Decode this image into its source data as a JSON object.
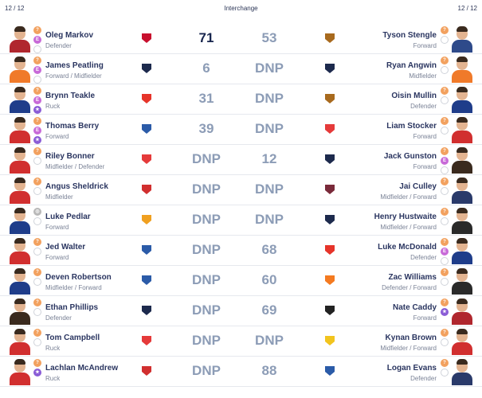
{
  "header": {
    "left_count": "12 / 12",
    "title": "Interchange",
    "right_count": "12 / 12"
  },
  "rows": [
    {
      "left": {
        "name": "Oleg Markov",
        "pos": "Defender",
        "score": "71",
        "logo": "essendon",
        "badges": [
          "q",
          "e",
          "o"
        ],
        "jersey": "#b0272e"
      },
      "right": {
        "name": "Tyson Stengle",
        "pos": "Forward",
        "score": "53",
        "logo": "hawthorn",
        "badges": [
          "q",
          "o"
        ],
        "jersey": "#2e4a8a"
      }
    },
    {
      "left": {
        "name": "James Peatling",
        "pos": "Forward / Midfielder",
        "score": "6",
        "logo": "carlton",
        "badges": [
          "q",
          "e",
          "o"
        ],
        "jersey": "#f07a2a"
      },
      "right": {
        "name": "Ryan Angwin",
        "pos": "Midfielder",
        "score": "DNP",
        "logo": "carlton",
        "badges": [
          "q",
          "o"
        ],
        "jersey": "#f07a2a"
      }
    },
    {
      "left": {
        "name": "Brynn Teakle",
        "pos": "Ruck",
        "score": "31",
        "logo": "suns",
        "badges": [
          "q",
          "e",
          "s"
        ],
        "jersey": "#1f3d8a"
      },
      "right": {
        "name": "Oisin Mullin",
        "pos": "Defender",
        "score": "DNP",
        "logo": "hawthorn",
        "badges": [
          "q",
          "o"
        ],
        "jersey": "#1f3d8a"
      }
    },
    {
      "left": {
        "name": "Thomas Berry",
        "pos": "Forward",
        "score": "39",
        "logo": "north",
        "badges": [
          "q",
          "e",
          "s"
        ],
        "jersey": "#d12f2f"
      },
      "right": {
        "name": "Liam Stocker",
        "pos": "Forward",
        "score": "DNP",
        "logo": "swans",
        "badges": [
          "q",
          "o"
        ],
        "jersey": "#d12f2f"
      }
    },
    {
      "left": {
        "name": "Riley Bonner",
        "pos": "Midfielder / Defender",
        "score": "DNP",
        "logo": "swans",
        "badges": [
          "q",
          "o"
        ],
        "jersey": "#d12f2f"
      },
      "right": {
        "name": "Jack Gunston",
        "pos": "Forward",
        "score": "12",
        "logo": "geelong",
        "badges": [
          "q",
          "e",
          "o"
        ],
        "jersey": "#3a2a1e"
      }
    },
    {
      "left": {
        "name": "Angus Sheldrick",
        "pos": "Midfielder",
        "score": "DNP",
        "logo": "stkilda",
        "badges": [
          "q",
          "o"
        ],
        "jersey": "#d12f2f"
      },
      "right": {
        "name": "Jai Culley",
        "pos": "Midfielder / Forward",
        "score": "DNP",
        "logo": "brisbane",
        "badges": [
          "q",
          "o"
        ],
        "jersey": "#2a3a6a"
      }
    },
    {
      "left": {
        "name": "Luke Pedlar",
        "pos": "Forward",
        "score": "DNP",
        "logo": "adelaide",
        "badges": [
          "g",
          "o"
        ],
        "jersey": "#1f3d8a"
      },
      "right": {
        "name": "Henry Hustwaite",
        "pos": "Midfielder / Forward",
        "score": "DNP",
        "logo": "geelong",
        "badges": [
          "q",
          "o"
        ],
        "jersey": "#2a2a2a"
      }
    },
    {
      "left": {
        "name": "Jed Walter",
        "pos": "Forward",
        "score": "DNP",
        "logo": "north",
        "badges": [
          "q",
          "o"
        ],
        "jersey": "#d12f2f"
      },
      "right": {
        "name": "Luke McDonald",
        "pos": "Defender",
        "score": "68",
        "logo": "suns",
        "badges": [
          "q",
          "e",
          "o"
        ],
        "jersey": "#1f3d8a"
      }
    },
    {
      "left": {
        "name": "Deven Robertson",
        "pos": "Midfielder / Forward",
        "score": "DNP",
        "logo": "adelaide2",
        "badges": [
          "q",
          "o"
        ],
        "jersey": "#1f3d8a"
      },
      "right": {
        "name": "Zac Williams",
        "pos": "Defender / Forward",
        "score": "60",
        "logo": "giants",
        "badges": [
          "q",
          "o"
        ],
        "jersey": "#2a2a2a"
      }
    },
    {
      "left": {
        "name": "Ethan Phillips",
        "pos": "Defender",
        "score": "DNP",
        "logo": "geelong",
        "badges": [
          "q",
          "o"
        ],
        "jersey": "#3a2a1e"
      },
      "right": {
        "name": "Nate Caddy",
        "pos": "Forward",
        "score": "69",
        "logo": "collingwood",
        "badges": [
          "q",
          "s"
        ],
        "jersey": "#b0272e"
      }
    },
    {
      "left": {
        "name": "Tom Campbell",
        "pos": "Ruck",
        "score": "DNP",
        "logo": "swans",
        "badges": [
          "q",
          "o"
        ],
        "jersey": "#d12f2f"
      },
      "right": {
        "name": "Kynan Brown",
        "pos": "Midfielder / Forward",
        "score": "DNP",
        "logo": "eagles",
        "badges": [
          "q",
          "o"
        ],
        "jersey": "#d12f2f"
      }
    },
    {
      "left": {
        "name": "Lachlan McAndrew",
        "pos": "Ruck",
        "score": "DNP",
        "logo": "stkilda",
        "badges": [
          "q",
          "s"
        ],
        "jersey": "#d12f2f"
      },
      "right": {
        "name": "Logan Evans",
        "pos": "Defender",
        "score": "88",
        "logo": "bulldogs",
        "badges": [
          "q",
          "o"
        ],
        "jersey": "#2a3a6a"
      }
    }
  ],
  "logo_colors": {
    "essendon": "#c8102e",
    "carlton": "#1d2a4d",
    "suns": "#e6342a",
    "north": "#2b5ba8",
    "swans": "#e53a3a",
    "stkilda": "#d12f2f",
    "adelaide": "#f0a020",
    "adelaide2": "#2b5ba8",
    "geelong": "#1d2a4d",
    "hawthorn": "#a86a1e",
    "brisbane": "#7a2a3a",
    "giants": "#f47a20",
    "collingwood": "#222222",
    "eagles": "#f2c41e",
    "bulldogs": "#2b5ba8"
  },
  "badge_glyph": {
    "q": "?",
    "e": "E",
    "s": "★",
    "g": "◎",
    "o": ""
  }
}
